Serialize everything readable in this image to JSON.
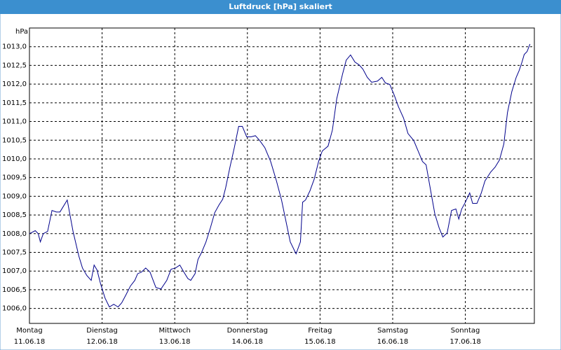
{
  "chart_data": {
    "type": "line",
    "title": "Luftdruck [hPa] skaliert",
    "y_label": "hPa",
    "x": [
      0,
      0.08,
      0.12,
      0.15,
      0.19,
      0.25,
      0.31,
      0.37,
      0.42,
      0.52,
      0.6,
      0.68,
      0.73,
      0.79,
      0.85,
      0.89,
      0.93,
      0.98,
      1.04,
      1.1,
      1.16,
      1.22,
      1.27,
      1.33,
      1.39,
      1.45,
      1.49,
      1.54,
      1.6,
      1.66,
      1.74,
      1.81,
      1.89,
      1.95,
      2.01,
      2.07,
      2.12,
      2.18,
      2.22,
      2.28,
      2.32,
      2.37,
      2.43,
      2.49,
      2.55,
      2.61,
      2.66,
      2.7,
      2.76,
      2.82,
      2.88,
      2.93,
      2.99,
      3.05,
      3.11,
      3.17,
      3.24,
      3.32,
      3.4,
      3.47,
      3.53,
      3.59,
      3.67,
      3.73,
      3.76,
      3.8,
      3.86,
      3.92,
      3.98,
      4.03,
      4.11,
      4.17,
      4.23,
      4.31,
      4.36,
      4.42,
      4.48,
      4.54,
      4.59,
      4.65,
      4.71,
      4.79,
      4.85,
      4.9,
      4.96,
      5.02,
      5.08,
      5.15,
      5.21,
      5.29,
      5.35,
      5.41,
      5.46,
      5.52,
      5.58,
      5.64,
      5.69,
      5.75,
      5.81,
      5.87,
      5.91,
      5.95,
      6.0,
      6.06,
      6.1,
      6.16,
      6.22,
      6.27,
      6.35,
      6.41,
      6.47,
      6.53,
      6.58,
      6.64,
      6.7,
      6.74,
      6.78,
      6.81,
      6.85,
      6.89
    ],
    "series": [
      {
        "color": "#00008b",
        "values": [
          1008.0,
          1008.08,
          1008.0,
          1007.78,
          1008.0,
          1008.06,
          1008.62,
          1008.58,
          1008.58,
          1008.9,
          1008.06,
          1007.4,
          1007.08,
          1006.88,
          1006.75,
          1007.16,
          1007.03,
          1006.65,
          1006.28,
          1006.04,
          1006.11,
          1006.04,
          1006.15,
          1006.37,
          1006.6,
          1006.75,
          1006.93,
          1006.97,
          1007.08,
          1006.97,
          1006.56,
          1006.52,
          1006.75,
          1007.05,
          1007.08,
          1007.16,
          1006.99,
          1006.8,
          1006.75,
          1006.93,
          1007.31,
          1007.5,
          1007.78,
          1008.15,
          1008.56,
          1008.77,
          1008.92,
          1009.22,
          1009.78,
          1010.3,
          1010.87,
          1010.87,
          1010.59,
          1010.59,
          1010.62,
          1010.49,
          1010.3,
          1009.93,
          1009.41,
          1008.9,
          1008.34,
          1007.78,
          1007.46,
          1007.78,
          1008.84,
          1008.9,
          1009.14,
          1009.46,
          1009.93,
          1010.21,
          1010.34,
          1010.77,
          1011.61,
          1012.27,
          1012.64,
          1012.78,
          1012.59,
          1012.51,
          1012.4,
          1012.18,
          1012.05,
          1012.08,
          1012.18,
          1012.03,
          1011.99,
          1011.71,
          1011.39,
          1011.09,
          1010.68,
          1010.49,
          1010.21,
          1009.93,
          1009.84,
          1009.18,
          1008.53,
          1008.15,
          1007.91,
          1008.02,
          1008.62,
          1008.66,
          1008.39,
          1008.66,
          1008.84,
          1009.09,
          1008.81,
          1008.81,
          1009.09,
          1009.41,
          1009.65,
          1009.78,
          1009.97,
          1010.4,
          1011.24,
          1011.8,
          1012.18,
          1012.36,
          1012.59,
          1012.79,
          1012.87,
          1013.07
        ]
      }
    ],
    "xlim": [
      0,
      6.95
    ],
    "ylim": [
      1005.6,
      1013.5
    ],
    "xticks": [
      {
        "value": 0,
        "label": [
          "Montag",
          "11.06.18"
        ]
      },
      {
        "value": 1,
        "label": [
          "Dienstag",
          "12.06.18"
        ]
      },
      {
        "value": 2,
        "label": [
          "Mittwoch",
          "13.06.18"
        ]
      },
      {
        "value": 3,
        "label": [
          "Donnerstag",
          "14.06.18"
        ]
      },
      {
        "value": 4,
        "label": [
          "Freitag",
          "15.06.18"
        ]
      },
      {
        "value": 5,
        "label": [
          "Samstag",
          "16.06.18"
        ]
      },
      {
        "value": 6,
        "label": [
          "Sonntag",
          "17.06.18"
        ]
      }
    ],
    "yticks": [
      {
        "value": 1006,
        "label": "1006,0"
      },
      {
        "value": 1006.5,
        "label": "1006,5"
      },
      {
        "value": 1007,
        "label": "1007,0"
      },
      {
        "value": 1007.5,
        "label": "1007,5"
      },
      {
        "value": 1008,
        "label": "1008,0"
      },
      {
        "value": 1008.5,
        "label": "1008,5"
      },
      {
        "value": 1009,
        "label": "1009,0"
      },
      {
        "value": 1009.5,
        "label": "1009,5"
      },
      {
        "value": 1010,
        "label": "1010,0"
      },
      {
        "value": 1010.5,
        "label": "1010,5"
      },
      {
        "value": 1011,
        "label": "1011,0"
      },
      {
        "value": 1011.5,
        "label": "1011,5"
      },
      {
        "value": 1012,
        "label": "1012,0"
      },
      {
        "value": 1012.5,
        "label": "1012,5"
      },
      {
        "value": 1013,
        "label": "1013,0"
      }
    ],
    "grid": true
  }
}
